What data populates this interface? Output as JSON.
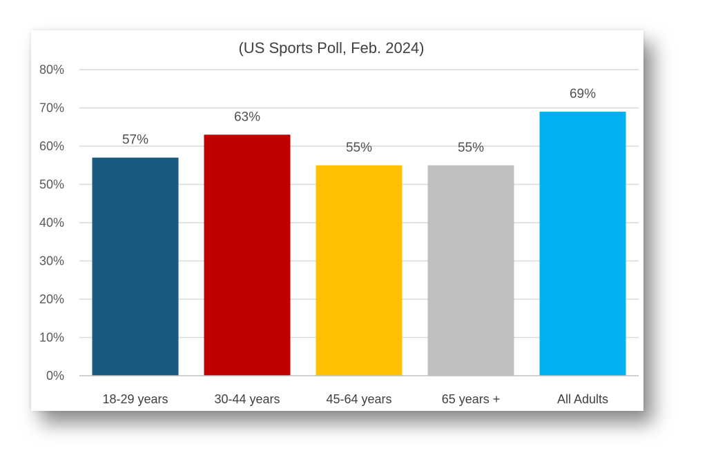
{
  "chart_data": {
    "type": "bar",
    "title": "(US Sports Poll, Feb. 2024)",
    "categories": [
      "18-29 years",
      "30-44 years",
      "45-64 years",
      "65 years +",
      "All Adults"
    ],
    "values": [
      57,
      63,
      55,
      55,
      69
    ],
    "value_labels": [
      "57%",
      "63%",
      "55%",
      "55%",
      "69%"
    ],
    "colors": [
      "#175C7E",
      "#C00000",
      "#FFC000",
      "#BFBFBF",
      "#00B0F0"
    ],
    "ylim": [
      0,
      80
    ],
    "y_ticks": [
      0,
      10,
      20,
      30,
      40,
      50,
      60,
      70,
      80
    ],
    "y_tick_labels": [
      "0%",
      "10%",
      "20%",
      "30%",
      "40%",
      "50%",
      "60%",
      "70%",
      "80%"
    ],
    "xlabel": "",
    "ylabel": "",
    "grid": true,
    "legend": "none"
  }
}
